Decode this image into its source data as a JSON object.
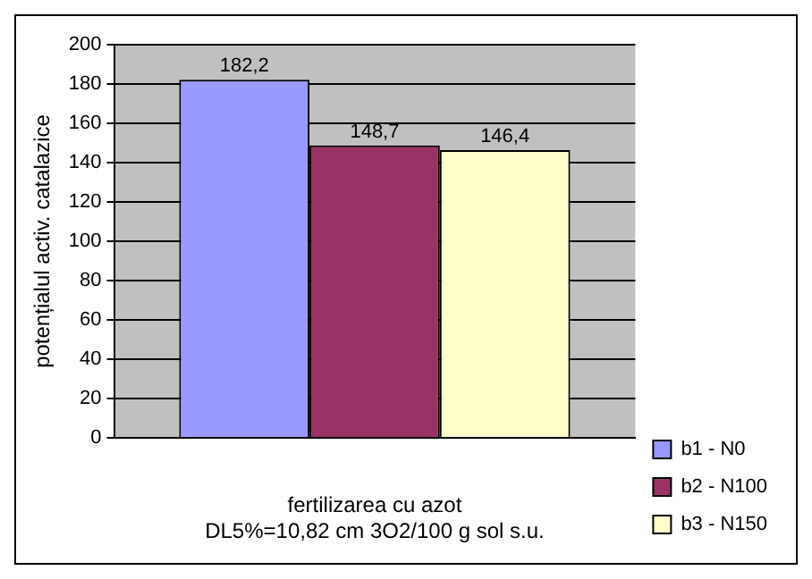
{
  "chart_data": {
    "type": "bar",
    "categories": [
      null
    ],
    "xlabel": "fertilizarea cu azot\nDL5%=10,82 cm 3O2/100 g sol s.u.",
    "ylabel": "potențialul activ. catalazice",
    "series": [
      {
        "name": "b1 - N0",
        "color": "#9999ff",
        "values": [
          182.2
        ],
        "value_labels": [
          "182,2"
        ]
      },
      {
        "name": "b2 - N100",
        "color": "#993366",
        "values": [
          148.7
        ],
        "value_labels": [
          "148,7"
        ]
      },
      {
        "name": "b3 - N150",
        "color": "#ffffcc",
        "values": [
          146.4
        ],
        "value_labels": [
          "146,4"
        ]
      }
    ],
    "ylim": [
      0,
      200
    ],
    "yticks": [
      0,
      20,
      40,
      60,
      80,
      100,
      120,
      140,
      160,
      180,
      200
    ],
    "grid": "y",
    "legend": "bottom right"
  }
}
